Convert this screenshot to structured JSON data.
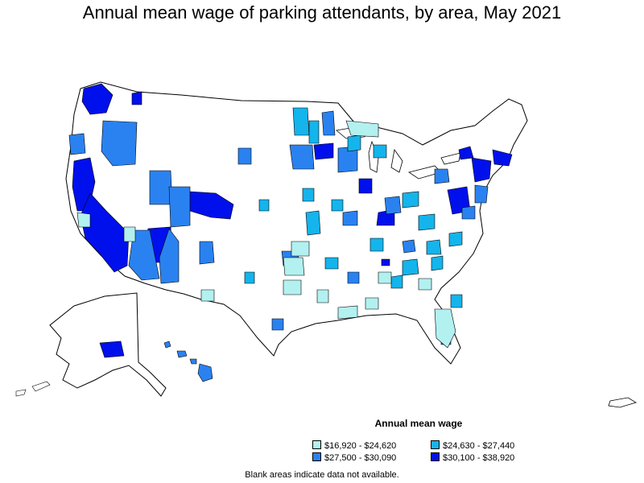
{
  "title": "Annual mean wage of parking attendants, by area, May 2021",
  "legend": {
    "title": "Annual mean wage",
    "items": [
      {
        "label": "$16,920 - $24,620",
        "color": "#b3f0f0"
      },
      {
        "label": "$24,630 - $27,440",
        "color": "#14b4ec"
      },
      {
        "label": "$27,500 - $30,090",
        "color": "#2a82f0"
      },
      {
        "label": "$30,100 - $38,920",
        "color": "#0010ec"
      }
    ]
  },
  "footnote": "Blank areas indicate data not available.",
  "colors": {
    "background": "#ffffff",
    "state_fill": "#ffffff",
    "border": "#000000"
  }
}
